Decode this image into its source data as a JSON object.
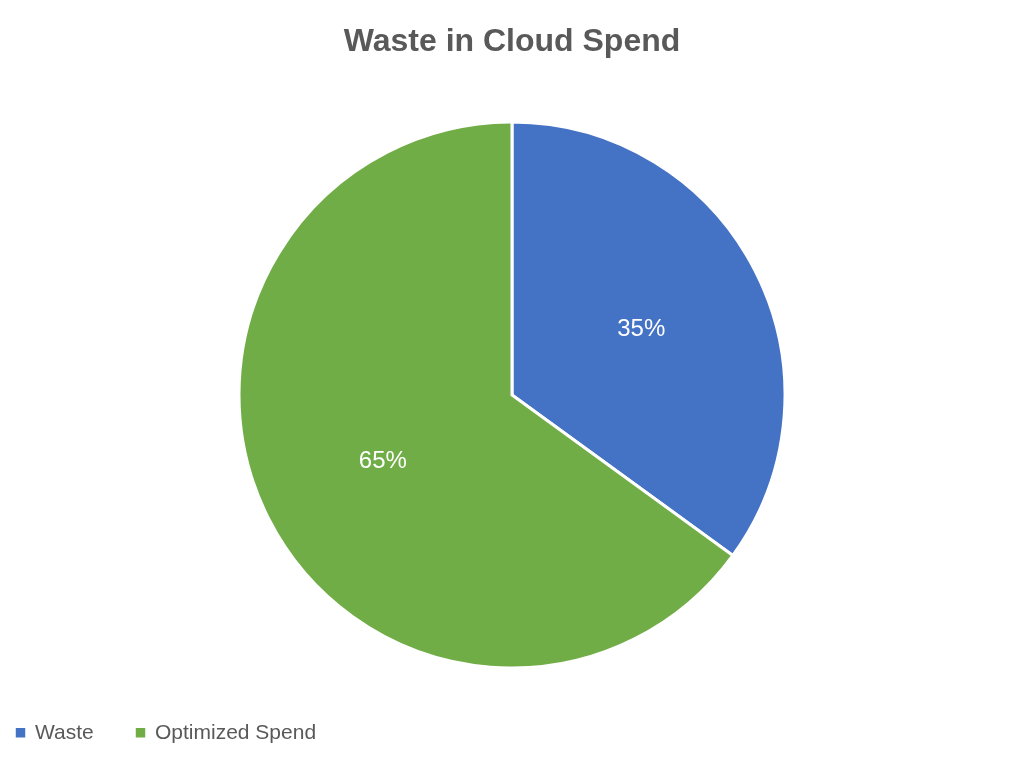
{
  "chart_data": {
    "type": "pie",
    "title": "Waste in Cloud Spend",
    "categories": [
      "Waste",
      "Optimized Spend"
    ],
    "values": [
      35,
      65
    ],
    "colors": [
      "#4472c4",
      "#70ad47"
    ],
    "value_labels": [
      "35%",
      "65%"
    ],
    "legend": "bottom"
  }
}
